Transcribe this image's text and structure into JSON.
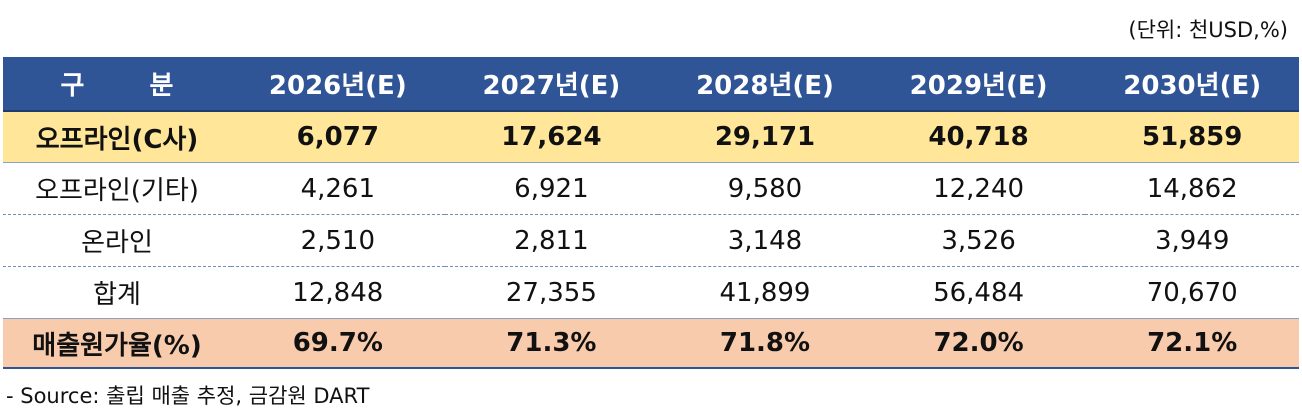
{
  "unit_label": "(단위: 천USD,%)",
  "table": {
    "headers": [
      "구 분",
      "2026년(E)",
      "2027년(E)",
      "2028년(E)",
      "2029년(E)",
      "2030년(E)"
    ],
    "rows": [
      {
        "label": "오프라인(C사)",
        "values": [
          "6,077",
          "17,624",
          "29,171",
          "40,718",
          "51,859"
        ]
      },
      {
        "label": "오프라인(기타)",
        "values": [
          "4,261",
          "6,921",
          "9,580",
          "12,240",
          "14,862"
        ]
      },
      {
        "label": "온라인",
        "values": [
          "2,510",
          "2,811",
          "3,148",
          "3,526",
          "3,949"
        ]
      },
      {
        "label": "합계",
        "values": [
          "12,848",
          "27,355",
          "41,899",
          "56,484",
          "70,670"
        ]
      },
      {
        "label": "매출원가율(%)",
        "values": [
          "69.7%",
          "71.3%",
          "71.8%",
          "72.0%",
          "72.1%"
        ]
      }
    ]
  },
  "colors": {
    "header_bg": "#2f5597",
    "highlight_row_1": "#ffe699",
    "highlight_row_5": "#f8cbad"
  },
  "source_note": "- Source: 출립 매출 추정, 금감원 DART"
}
